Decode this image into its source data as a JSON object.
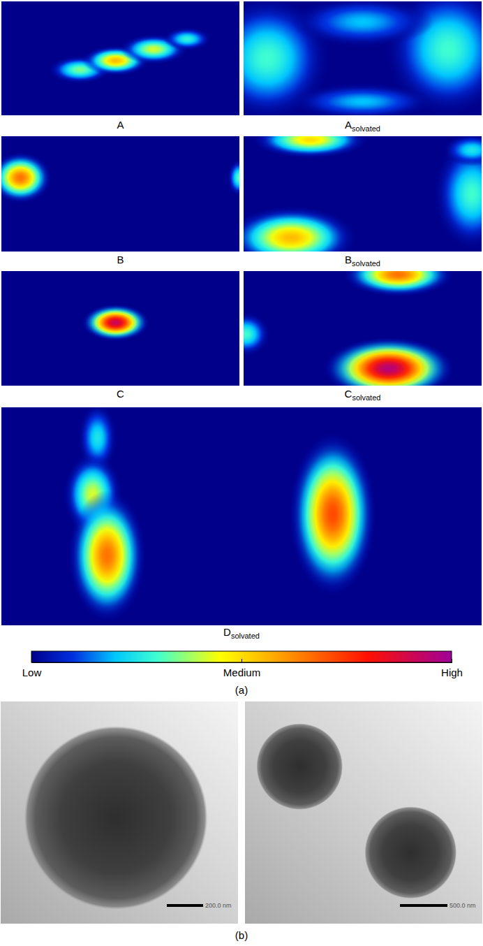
{
  "chart_data": [
    {
      "type": "heatmap",
      "caption": "(a)",
      "xlim": [
        0,
        100
      ],
      "ylim": [
        0,
        100
      ],
      "tick_labels": false,
      "colorbar": {
        "range": [
          0,
          1
        ],
        "ticks": [
          {
            "value": 0,
            "label": "Low"
          },
          {
            "value": 0.5,
            "label": "Medium"
          },
          {
            "value": 1,
            "label": "High"
          }
        ]
      },
      "panels": [
        {
          "label": "A",
          "blobs": [
            {
              "x": 33,
              "y": 60,
              "rx": 13,
              "ry": 12,
              "value": 0.35
            },
            {
              "x": 48,
              "y": 52,
              "rx": 14,
              "ry": 13,
              "value": 0.55
            },
            {
              "x": 64,
              "y": 42,
              "rx": 14,
              "ry": 13,
              "value": 0.42
            },
            {
              "x": 78,
              "y": 33,
              "rx": 10,
              "ry": 10,
              "value": 0.28
            }
          ]
        },
        {
          "label": "A",
          "subscript": "solvated",
          "blobs": [
            {
              "x": 10,
              "y": 50,
              "rx": 26,
              "ry": 55,
              "value": 0.3
            },
            {
              "x": 86,
              "y": 42,
              "rx": 26,
              "ry": 58,
              "value": 0.3
            },
            {
              "x": 50,
              "y": 18,
              "rx": 30,
              "ry": 22,
              "value": 0.2
            },
            {
              "x": 50,
              "y": 88,
              "rx": 30,
              "ry": 16,
              "value": 0.2
            }
          ]
        },
        {
          "label": "B",
          "blobs": [
            {
              "x": 8,
              "y": 36,
              "rx": 13,
              "ry": 22,
              "value": 0.66
            },
            {
              "x": 100,
              "y": 36,
              "rx": 5,
              "ry": 16,
              "value": 0.32
            }
          ]
        },
        {
          "label": "B",
          "subscript": "solvated",
          "blobs": [
            {
              "x": 28,
              "y": 3,
              "rx": 24,
              "ry": 16,
              "value": 0.5
            },
            {
              "x": 20,
              "y": 88,
              "rx": 27,
              "ry": 27,
              "value": 0.55
            },
            {
              "x": 96,
              "y": 50,
              "rx": 16,
              "ry": 48,
              "value": 0.3
            },
            {
              "x": 96,
              "y": 12,
              "rx": 12,
              "ry": 14,
              "value": 0.25
            }
          ]
        },
        {
          "label": "C",
          "blobs": [
            {
              "x": 48,
              "y": 45,
              "rx": 14,
              "ry": 16,
              "value": 0.92
            }
          ]
        },
        {
          "label": "C",
          "subscript": "solvated",
          "blobs": [
            {
              "x": 65,
              "y": 3,
              "rx": 23,
              "ry": 19,
              "value": 0.66
            },
            {
              "x": 61,
              "y": 85,
              "rx": 27,
              "ry": 27,
              "value": 0.96
            },
            {
              "x": 1,
              "y": 55,
              "rx": 10,
              "ry": 19,
              "value": 0.3
            }
          ]
        },
        {
          "label": "D",
          "subscript": "solvated",
          "blobs": [
            {
              "x": 20,
              "y": 14,
              "rx": 4,
              "ry": 16,
              "value": 0.25
            },
            {
              "x": 19,
              "y": 40,
              "rx": 6,
              "ry": 19,
              "value": 0.42
            },
            {
              "x": 22,
              "y": 68,
              "rx": 8,
              "ry": 30,
              "value": 0.66
            },
            {
              "x": 69,
              "y": 49,
              "rx": 9,
              "ry": 37,
              "value": 0.72
            }
          ]
        }
      ]
    },
    {
      "type": "micrograph",
      "caption": "(b)",
      "images": [
        {
          "xlim": [
            0,
            1308
          ],
          "ylim": [
            0,
            1223
          ],
          "particles": [
            {
              "x": 635,
              "y": 640,
              "r": 505
            }
          ],
          "scale_bar": {
            "value": 200,
            "label": "200.0 nm"
          }
        },
        {
          "xlim": [
            0,
            2500
          ],
          "ylim": [
            0,
            2338
          ],
          "particles": [
            {
              "x": 575,
              "y": 685,
              "r": 455
            },
            {
              "x": 1745,
              "y": 1590,
              "r": 485
            }
          ],
          "scale_bar": {
            "value": 500,
            "label": "500.0 nm"
          }
        }
      ]
    }
  ]
}
